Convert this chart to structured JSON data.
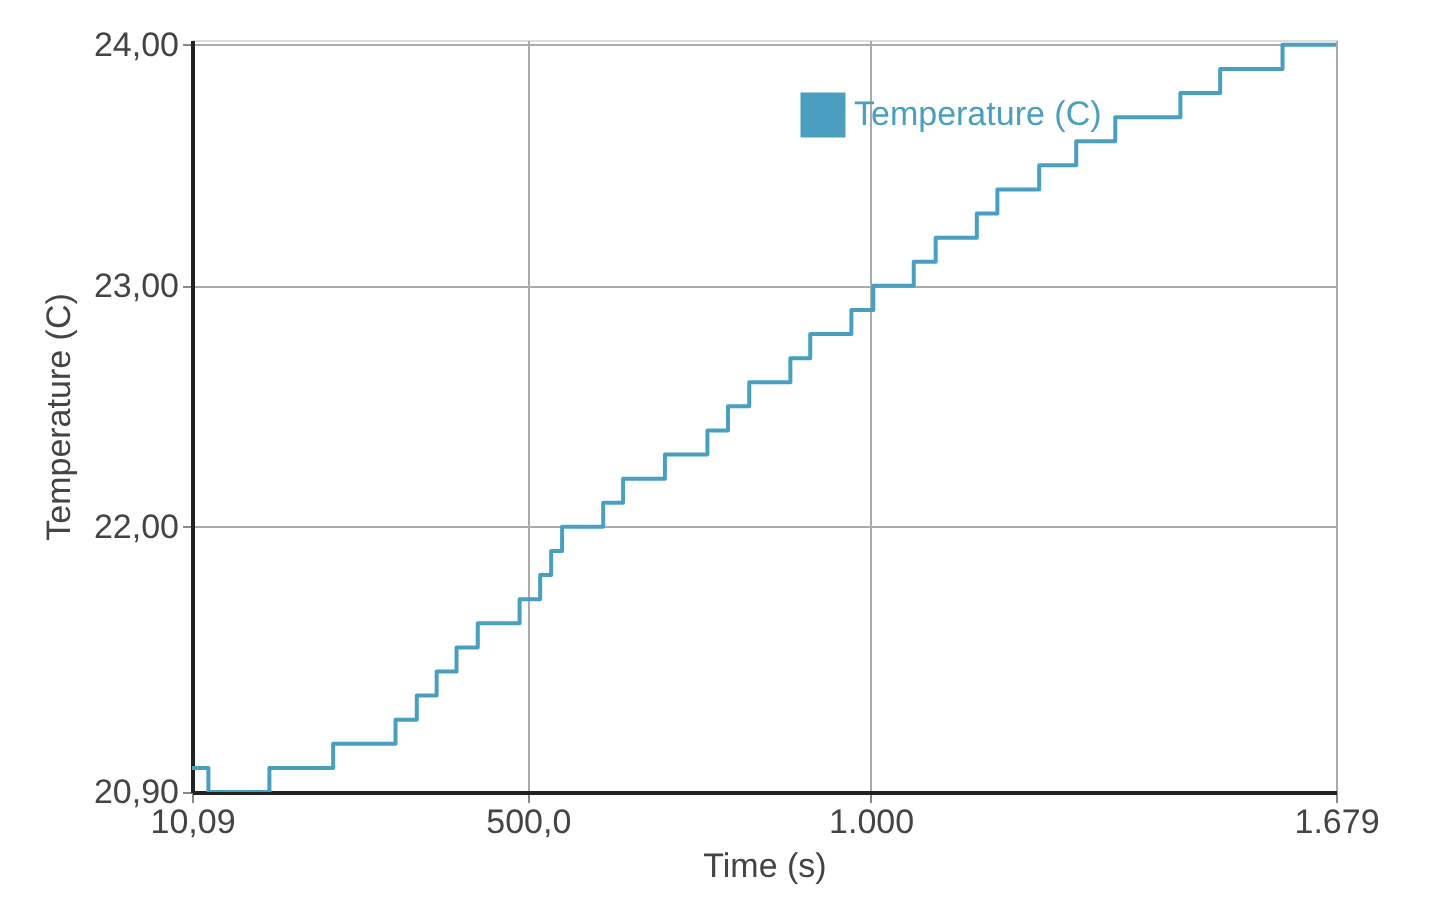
{
  "chart_data": {
    "type": "step",
    "xlabel": "Time (s)",
    "ylabel": "Temperature (C)",
    "x": [
      10.09,
      34,
      123,
      216,
      307,
      338,
      367,
      396,
      427,
      488,
      518,
      534,
      550,
      610,
      639,
      700,
      762,
      792,
      823,
      883,
      912,
      972,
      1004,
      1063,
      1095,
      1155,
      1185,
      1246,
      1300,
      1357,
      1452,
      1510,
      1601,
      1679
    ],
    "series": [
      {
        "name": "Temperature (C)",
        "color": "#4a9fc0",
        "values": [
          21.0,
          20.9,
          21.0,
          21.1,
          21.2,
          21.3,
          21.4,
          21.5,
          21.6,
          21.7,
          21.8,
          21.9,
          22.0,
          22.1,
          22.2,
          22.3,
          22.4,
          22.5,
          22.6,
          22.7,
          22.8,
          22.9,
          23.0,
          23.1,
          23.2,
          23.3,
          23.4,
          23.5,
          23.6,
          23.7,
          23.8,
          23.9,
          24.0,
          24.0
        ]
      }
    ],
    "xlim": [
      10.09,
      1679
    ],
    "xticks": [
      {
        "value": 10.09,
        "label": "10,09"
      },
      {
        "value": 500,
        "label": "500,0"
      },
      {
        "value": 1000,
        "label": "1.000"
      },
      {
        "value": 1679,
        "label": "1.679"
      }
    ],
    "ylim": [
      20.9,
      24.02
    ],
    "yticks": [
      {
        "value": 20.9,
        "label": "20,90"
      },
      {
        "value": 22,
        "label": "22,00"
      },
      {
        "value": 23,
        "label": "23,00"
      },
      {
        "value": 24,
        "label": "24,00"
      }
    ],
    "grid": true,
    "legend": "top right",
    "marker": "none",
    "line_style": "solid"
  }
}
